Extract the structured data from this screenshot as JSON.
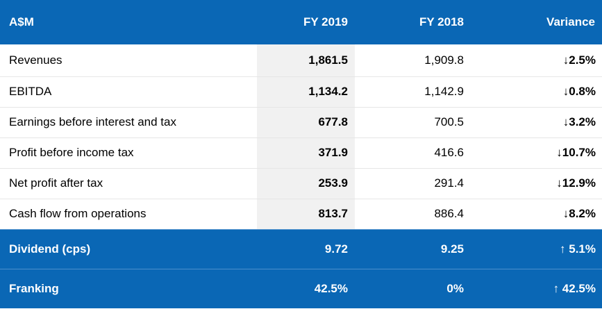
{
  "header": {
    "label": "A$M",
    "fy2019": "FY 2019",
    "fy2018": "FY 2018",
    "variance": "Variance"
  },
  "rows": [
    {
      "label": "Revenues",
      "fy2019": "1,861.5",
      "fy2018": "1,909.8",
      "variance": "↓2.5%"
    },
    {
      "label": "EBITDA",
      "fy2019": "1,134.2",
      "fy2018": "1,142.9",
      "variance": "↓0.8%"
    },
    {
      "label": "Earnings before interest and tax",
      "fy2019": "677.8",
      "fy2018": "700.5",
      "variance": "↓3.2%"
    },
    {
      "label": "Profit before income tax",
      "fy2019": "371.9",
      "fy2018": "416.6",
      "variance": "↓10.7%"
    },
    {
      "label": "Net profit after tax",
      "fy2019": "253.9",
      "fy2018": "291.4",
      "variance": "↓12.9%"
    },
    {
      "label": "Cash flow from operations",
      "fy2019": "813.7",
      "fy2018": "886.4",
      "variance": "↓8.2%"
    }
  ],
  "footer_rows": [
    {
      "label": "Dividend (cps)",
      "fy2019": "9.72",
      "fy2018": "9.25",
      "variance": "↑ 5.1%"
    },
    {
      "label": "Franking",
      "fy2019": "42.5%",
      "fy2018": "0%",
      "variance": "↑ 42.5%"
    }
  ],
  "colors": {
    "header_bg": "#0a67b5",
    "highlight_col_bg": "#f1f1f1"
  }
}
